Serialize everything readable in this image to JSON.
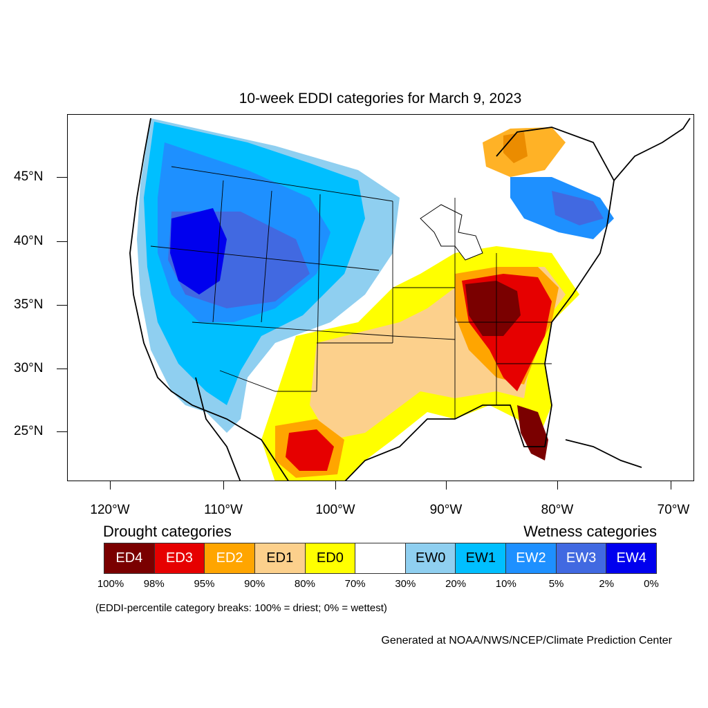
{
  "title": "10-week EDDI categories for March 9, 2023",
  "axes": {
    "lat_labels": [
      "45°N",
      "40°N",
      "35°N",
      "30°N",
      "25°N"
    ],
    "lon_labels": [
      "120°W",
      "110°W",
      "100°W",
      "90°W",
      "80°W",
      "70°W"
    ]
  },
  "legend": {
    "drought_heading": "Drought categories",
    "wetness_heading": "Wetness categories",
    "categories": [
      {
        "label": "ED4",
        "color": "#7a0000",
        "text_color": "#ffffff"
      },
      {
        "label": "ED3",
        "color": "#e60000",
        "text_color": "#ffffff"
      },
      {
        "label": "ED2",
        "color": "#ffa500",
        "text_color": "#ffffff"
      },
      {
        "label": "ED1",
        "color": "#fcd08c",
        "text_color": "#000000"
      },
      {
        "label": "ED0",
        "color": "#ffff00",
        "text_color": "#000000"
      },
      {
        "label": "",
        "color": "#ffffff",
        "text_color": "#000000"
      },
      {
        "label": "EW0",
        "color": "#8fcff0",
        "text_color": "#000000"
      },
      {
        "label": "EW1",
        "color": "#00bfff",
        "text_color": "#000000"
      },
      {
        "label": "EW2",
        "color": "#1e90ff",
        "text_color": "#ffffff"
      },
      {
        "label": "EW3",
        "color": "#4169e1",
        "text_color": "#ffffff"
      },
      {
        "label": "EW4",
        "color": "#0000ee",
        "text_color": "#ffffff"
      }
    ],
    "breaks": [
      "100%",
      "98%",
      "95%",
      "90%",
      "80%",
      "70%",
      "30%",
      "20%",
      "10%",
      "5%",
      "2%",
      "0%"
    ]
  },
  "note": "(EDDI-percentile category breaks: 100% = driest; 0% = wettest)",
  "credit": "Generated at NOAA/NWS/NCEP/Climate Prediction Center"
}
